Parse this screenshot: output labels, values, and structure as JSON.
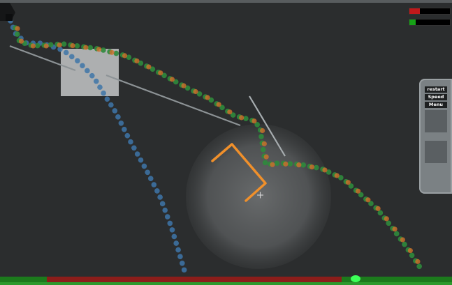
{
  "hud": {
    "red_meter": {
      "level": 0.25,
      "color": "#c0191b"
    },
    "green_meter": {
      "level": 0.15,
      "color": "#16a116"
    }
  },
  "menu": {
    "restart_label": "restart",
    "speed_label": "Speed up",
    "menu_label": "Menu"
  },
  "progress": {
    "red_color": "#8c1d1a",
    "green_color": "#1c7a1c",
    "marker_color": "#3cff58"
  },
  "colors": {
    "background": "#2b2d2e",
    "blue_trail": "#3e76a8",
    "orange_trail": "#d0702a",
    "green_trail": "#2f8a3c",
    "cup": "#f0902b",
    "ramp": "#8d9396"
  },
  "icons": {
    "cursor": "crosshair-icon",
    "cannon": "cannon-icon"
  }
}
